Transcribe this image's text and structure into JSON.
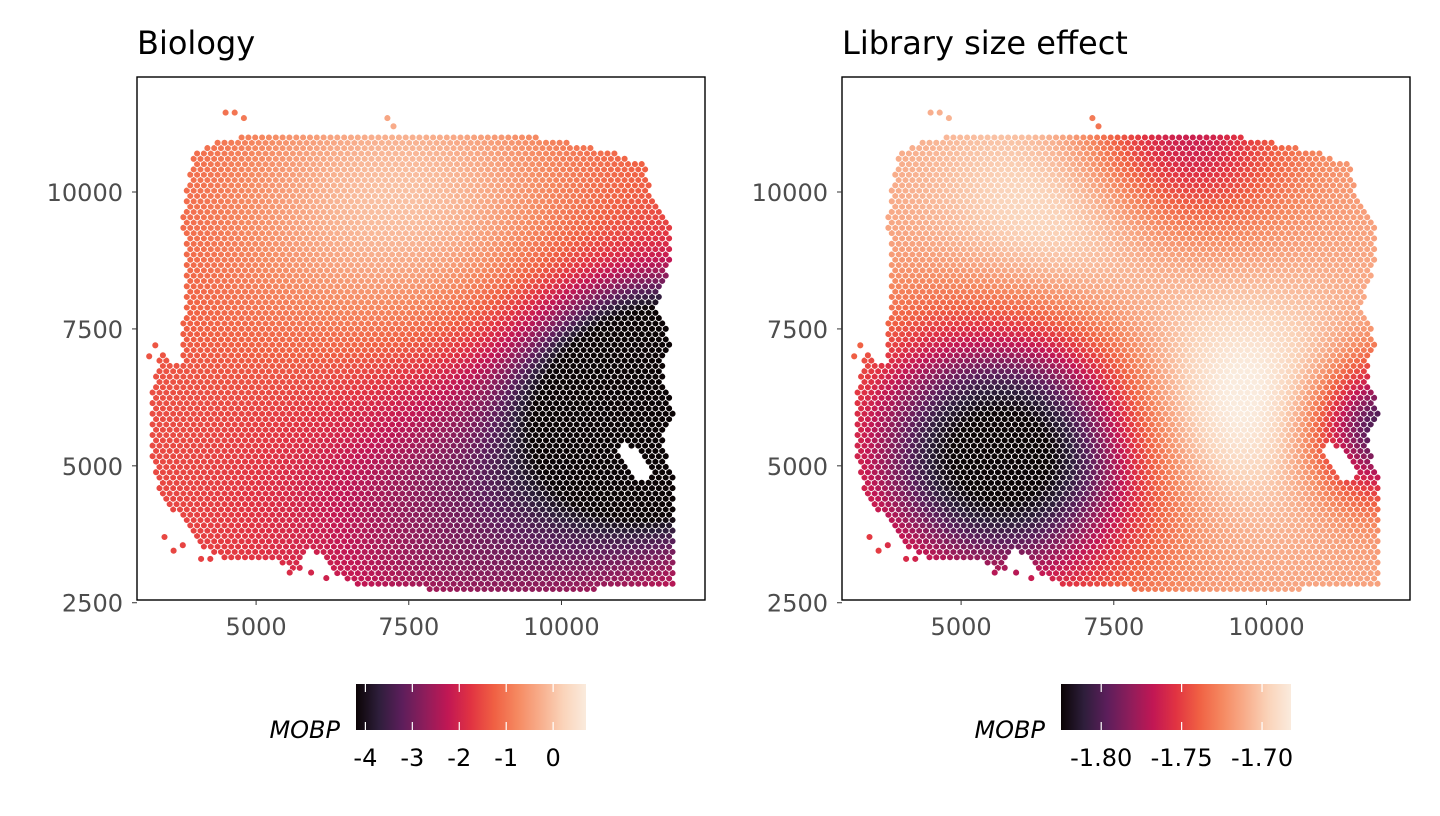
{
  "colors": {
    "palette": [
      "#0b0405",
      "#2e1e3b",
      "#5c1e5b",
      "#8e1d5b",
      "#c11754",
      "#e13342",
      "#f06043",
      "#f58860",
      "#f8ad8b",
      "#fad3b9",
      "#faebdd"
    ],
    "frame": "#000000",
    "point_outline": "#ffffff"
  },
  "chart_data": [
    {
      "type": "scatter",
      "title": "Biology",
      "x_ticks": [
        "5000",
        "7500",
        "10000"
      ],
      "x_tick_values": [
        5000,
        7500,
        10000
      ],
      "y_ticks": [
        "2500",
        "5000",
        "7500",
        "10000"
      ],
      "y_tick_values": [
        2500,
        5000,
        7500,
        10000
      ],
      "xlim": [
        3050,
        12350
      ],
      "ylim": [
        2550,
        12100
      ],
      "legend": {
        "title": "MOBP",
        "placement": "bottom",
        "ticks": [
          "-4",
          "-3",
          "-2",
          "-1",
          "0"
        ],
        "tick_values": [
          -4,
          -3,
          -2,
          -1,
          0
        ],
        "range": [
          -4.2,
          0.7
        ]
      },
      "field": {
        "description_values": "smooth field; high values at upper centre, low at right edge",
        "peaks": [
          {
            "x": 7400,
            "y": 9700,
            "value": 1.5,
            "sigma": 2100
          },
          {
            "x": 11700,
            "y": 6100,
            "value": -6.8,
            "sigma": 1300
          },
          {
            "x": 9000,
            "y": 4400,
            "value": -1.6,
            "sigma": 2300
          }
        ],
        "baseline": -1.45
      }
    },
    {
      "type": "scatter",
      "title": "Library size effect",
      "x_ticks": [
        "5000",
        "7500",
        "10000"
      ],
      "x_tick_values": [
        5000,
        7500,
        10000
      ],
      "y_ticks": [
        "2500",
        "5000",
        "7500",
        "10000"
      ],
      "y_tick_values": [
        2500,
        5000,
        7500,
        10000
      ],
      "xlim": [
        3050,
        12350
      ],
      "ylim": [
        2550,
        12100
      ],
      "legend": {
        "title": "MOBP",
        "placement": "bottom",
        "ticks": [
          "-1.80",
          "-1.75",
          "-1.70"
        ],
        "tick_values": [
          -1.8,
          -1.75,
          -1.7
        ],
        "range": [
          -1.825,
          -1.682
        ]
      },
      "field": {
        "description_values": "smooth field; low at lower-left and right edge, high at upper-left and centre-right",
        "peaks": [
          {
            "x": 5700,
            "y": 5200,
            "value": -0.125,
            "sigma": 1700
          },
          {
            "x": 11900,
            "y": 5700,
            "value": -0.1,
            "sigma": 900
          },
          {
            "x": 8500,
            "y": 10900,
            "value": -0.06,
            "sigma": 1300
          },
          {
            "x": 6800,
            "y": 9700,
            "value": 0.035,
            "sigma": 1500
          },
          {
            "x": 9600,
            "y": 6100,
            "value": 0.045,
            "sigma": 1400
          }
        ],
        "baseline": -1.715
      }
    }
  ]
}
